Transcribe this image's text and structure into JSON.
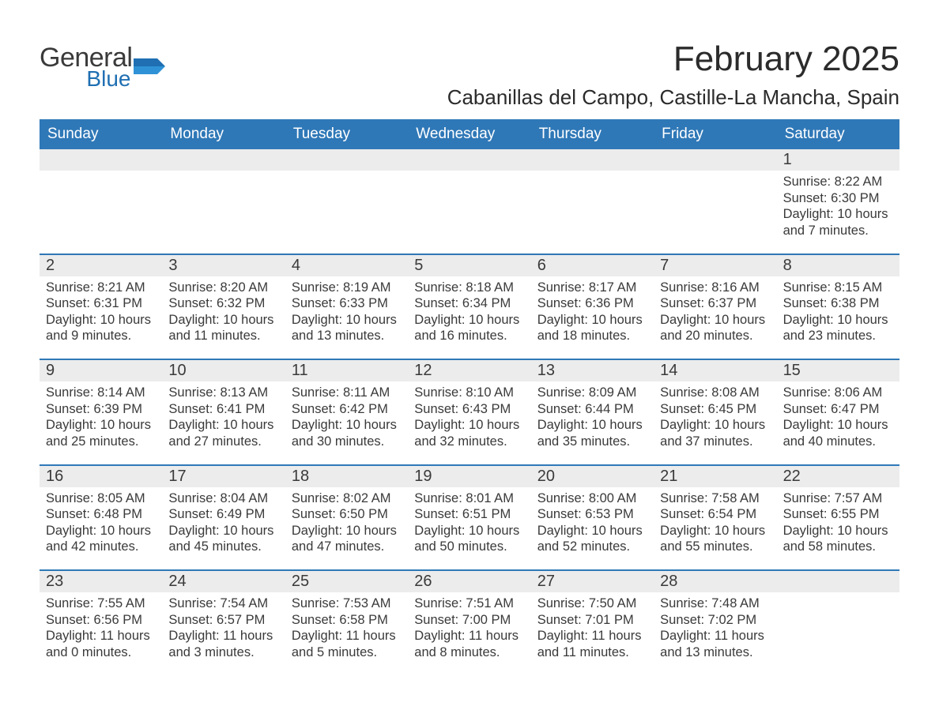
{
  "logo": {
    "general": "General",
    "blue": "Blue"
  },
  "title": "February 2025",
  "location": "Cabanillas del Campo, Castille-La Mancha, Spain",
  "colors": {
    "header_bg": "#2f78b7",
    "header_text": "#ffffff",
    "daynum_bg": "#ececec",
    "text": "#3a3a3a",
    "rule": "#2f78b7",
    "logo_blue": "#1f6fb2"
  },
  "fonts": {
    "title_pt": 44,
    "location_pt": 26,
    "weekday_pt": 19,
    "daynum_pt": 20,
    "body_pt": 16.5
  },
  "weekdays": [
    "Sunday",
    "Monday",
    "Tuesday",
    "Wednesday",
    "Thursday",
    "Friday",
    "Saturday"
  ],
  "weeks": [
    [
      null,
      null,
      null,
      null,
      null,
      null,
      {
        "n": "1",
        "sunrise": "Sunrise: 8:22 AM",
        "sunset": "Sunset: 6:30 PM",
        "day1": "Daylight: 10 hours",
        "day2": "and 7 minutes."
      }
    ],
    [
      {
        "n": "2",
        "sunrise": "Sunrise: 8:21 AM",
        "sunset": "Sunset: 6:31 PM",
        "day1": "Daylight: 10 hours",
        "day2": "and 9 minutes."
      },
      {
        "n": "3",
        "sunrise": "Sunrise: 8:20 AM",
        "sunset": "Sunset: 6:32 PM",
        "day1": "Daylight: 10 hours",
        "day2": "and 11 minutes."
      },
      {
        "n": "4",
        "sunrise": "Sunrise: 8:19 AM",
        "sunset": "Sunset: 6:33 PM",
        "day1": "Daylight: 10 hours",
        "day2": "and 13 minutes."
      },
      {
        "n": "5",
        "sunrise": "Sunrise: 8:18 AM",
        "sunset": "Sunset: 6:34 PM",
        "day1": "Daylight: 10 hours",
        "day2": "and 16 minutes."
      },
      {
        "n": "6",
        "sunrise": "Sunrise: 8:17 AM",
        "sunset": "Sunset: 6:36 PM",
        "day1": "Daylight: 10 hours",
        "day2": "and 18 minutes."
      },
      {
        "n": "7",
        "sunrise": "Sunrise: 8:16 AM",
        "sunset": "Sunset: 6:37 PM",
        "day1": "Daylight: 10 hours",
        "day2": "and 20 minutes."
      },
      {
        "n": "8",
        "sunrise": "Sunrise: 8:15 AM",
        "sunset": "Sunset: 6:38 PM",
        "day1": "Daylight: 10 hours",
        "day2": "and 23 minutes."
      }
    ],
    [
      {
        "n": "9",
        "sunrise": "Sunrise: 8:14 AM",
        "sunset": "Sunset: 6:39 PM",
        "day1": "Daylight: 10 hours",
        "day2": "and 25 minutes."
      },
      {
        "n": "10",
        "sunrise": "Sunrise: 8:13 AM",
        "sunset": "Sunset: 6:41 PM",
        "day1": "Daylight: 10 hours",
        "day2": "and 27 minutes."
      },
      {
        "n": "11",
        "sunrise": "Sunrise: 8:11 AM",
        "sunset": "Sunset: 6:42 PM",
        "day1": "Daylight: 10 hours",
        "day2": "and 30 minutes."
      },
      {
        "n": "12",
        "sunrise": "Sunrise: 8:10 AM",
        "sunset": "Sunset: 6:43 PM",
        "day1": "Daylight: 10 hours",
        "day2": "and 32 minutes."
      },
      {
        "n": "13",
        "sunrise": "Sunrise: 8:09 AM",
        "sunset": "Sunset: 6:44 PM",
        "day1": "Daylight: 10 hours",
        "day2": "and 35 minutes."
      },
      {
        "n": "14",
        "sunrise": "Sunrise: 8:08 AM",
        "sunset": "Sunset: 6:45 PM",
        "day1": "Daylight: 10 hours",
        "day2": "and 37 minutes."
      },
      {
        "n": "15",
        "sunrise": "Sunrise: 8:06 AM",
        "sunset": "Sunset: 6:47 PM",
        "day1": "Daylight: 10 hours",
        "day2": "and 40 minutes."
      }
    ],
    [
      {
        "n": "16",
        "sunrise": "Sunrise: 8:05 AM",
        "sunset": "Sunset: 6:48 PM",
        "day1": "Daylight: 10 hours",
        "day2": "and 42 minutes."
      },
      {
        "n": "17",
        "sunrise": "Sunrise: 8:04 AM",
        "sunset": "Sunset: 6:49 PM",
        "day1": "Daylight: 10 hours",
        "day2": "and 45 minutes."
      },
      {
        "n": "18",
        "sunrise": "Sunrise: 8:02 AM",
        "sunset": "Sunset: 6:50 PM",
        "day1": "Daylight: 10 hours",
        "day2": "and 47 minutes."
      },
      {
        "n": "19",
        "sunrise": "Sunrise: 8:01 AM",
        "sunset": "Sunset: 6:51 PM",
        "day1": "Daylight: 10 hours",
        "day2": "and 50 minutes."
      },
      {
        "n": "20",
        "sunrise": "Sunrise: 8:00 AM",
        "sunset": "Sunset: 6:53 PM",
        "day1": "Daylight: 10 hours",
        "day2": "and 52 minutes."
      },
      {
        "n": "21",
        "sunrise": "Sunrise: 7:58 AM",
        "sunset": "Sunset: 6:54 PM",
        "day1": "Daylight: 10 hours",
        "day2": "and 55 minutes."
      },
      {
        "n": "22",
        "sunrise": "Sunrise: 7:57 AM",
        "sunset": "Sunset: 6:55 PM",
        "day1": "Daylight: 10 hours",
        "day2": "and 58 minutes."
      }
    ],
    [
      {
        "n": "23",
        "sunrise": "Sunrise: 7:55 AM",
        "sunset": "Sunset: 6:56 PM",
        "day1": "Daylight: 11 hours",
        "day2": "and 0 minutes."
      },
      {
        "n": "24",
        "sunrise": "Sunrise: 7:54 AM",
        "sunset": "Sunset: 6:57 PM",
        "day1": "Daylight: 11 hours",
        "day2": "and 3 minutes."
      },
      {
        "n": "25",
        "sunrise": "Sunrise: 7:53 AM",
        "sunset": "Sunset: 6:58 PM",
        "day1": "Daylight: 11 hours",
        "day2": "and 5 minutes."
      },
      {
        "n": "26",
        "sunrise": "Sunrise: 7:51 AM",
        "sunset": "Sunset: 7:00 PM",
        "day1": "Daylight: 11 hours",
        "day2": "and 8 minutes."
      },
      {
        "n": "27",
        "sunrise": "Sunrise: 7:50 AM",
        "sunset": "Sunset: 7:01 PM",
        "day1": "Daylight: 11 hours",
        "day2": "and 11 minutes."
      },
      {
        "n": "28",
        "sunrise": "Sunrise: 7:48 AM",
        "sunset": "Sunset: 7:02 PM",
        "day1": "Daylight: 11 hours",
        "day2": "and 13 minutes."
      },
      null
    ]
  ]
}
